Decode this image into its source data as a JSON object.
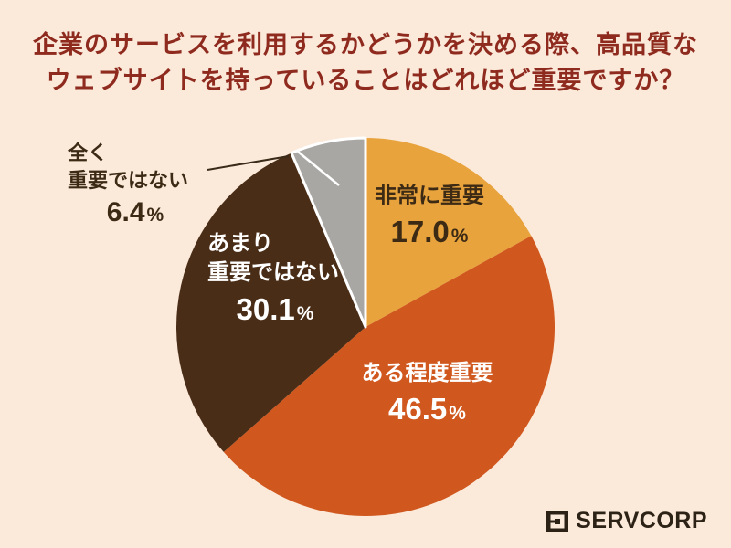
{
  "background": "#fbe9da",
  "title": {
    "line1": "企業のサービスを利用するかどうかを決める際、高品質な",
    "line2": "ウェブサイトを持っていることはどれほど重要ですか？",
    "color": "#8e2a1e"
  },
  "chart_data": {
    "type": "pie",
    "title": "企業のサービスを利用するかどうかを決める際、高品質なウェブサイトを持っていることはどれほど重要ですか？",
    "labels": [
      "非常に重要",
      "ある程度重要",
      "あまり重要ではない",
      "全く重要ではない"
    ],
    "values": [
      17.0,
      46.5,
      30.1,
      6.4
    ],
    "unit": "%",
    "colors": [
      "#e8a33c",
      "#d0571d",
      "#4a2d17",
      "#a8a7a4"
    ],
    "start_angle": "12 o'clock",
    "direction": "clockwise",
    "legend": "none",
    "label_placement": "inside, except smallest slice called out with leader line"
  },
  "slice_labels": {
    "very_important": {
      "name": "非常に重要",
      "value": "17.0",
      "unit": "%"
    },
    "somewhat_important": {
      "name": "ある程度重要",
      "value": "46.5",
      "unit": "%"
    },
    "not_very_important": {
      "name_line1": "あまり",
      "name_line2": "重要ではない",
      "value": "30.1",
      "unit": "%"
    },
    "not_at_all_important": {
      "name_line1": "全く",
      "name_line2": "重要ではない",
      "value": "6.4",
      "unit": "%"
    }
  },
  "logo": {
    "text": "SERVCORP"
  }
}
